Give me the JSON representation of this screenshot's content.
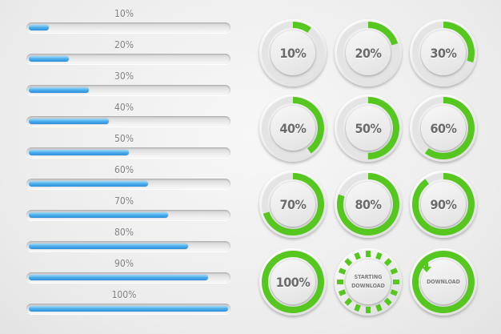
{
  "colors": {
    "bar_fill": "#3fa3e8",
    "ring_green": "#55c71e",
    "ring_track": "#e4e4e4"
  },
  "progress_bars": [
    {
      "label": "10%",
      "value": 0.1
    },
    {
      "label": "20%",
      "value": 0.2
    },
    {
      "label": "30%",
      "value": 0.3
    },
    {
      "label": "40%",
      "value": 0.4
    },
    {
      "label": "50%",
      "value": 0.5
    },
    {
      "label": "60%",
      "value": 0.6
    },
    {
      "label": "70%",
      "value": 0.7
    },
    {
      "label": "80%",
      "value": 0.8
    },
    {
      "label": "90%",
      "value": 0.9
    },
    {
      "label": "100%",
      "value": 1.0
    }
  ],
  "circular_progress": [
    {
      "label": "10%",
      "value": 0.1
    },
    {
      "label": "20%",
      "value": 0.2
    },
    {
      "label": "30%",
      "value": 0.3
    },
    {
      "label": "40%",
      "value": 0.4
    },
    {
      "label": "50%",
      "value": 0.5
    },
    {
      "label": "60%",
      "value": 0.6
    },
    {
      "label": "70%",
      "value": 0.7
    },
    {
      "label": "80%",
      "value": 0.8
    },
    {
      "label": "90%",
      "value": 0.9
    },
    {
      "label": "100%",
      "value": 1.0
    }
  ],
  "starting_download": {
    "line1": "STARTING",
    "line2": "DOWNLOAD"
  },
  "download_button": {
    "label": "DOWNLOAD",
    "icon": "arrow-down-icon"
  }
}
